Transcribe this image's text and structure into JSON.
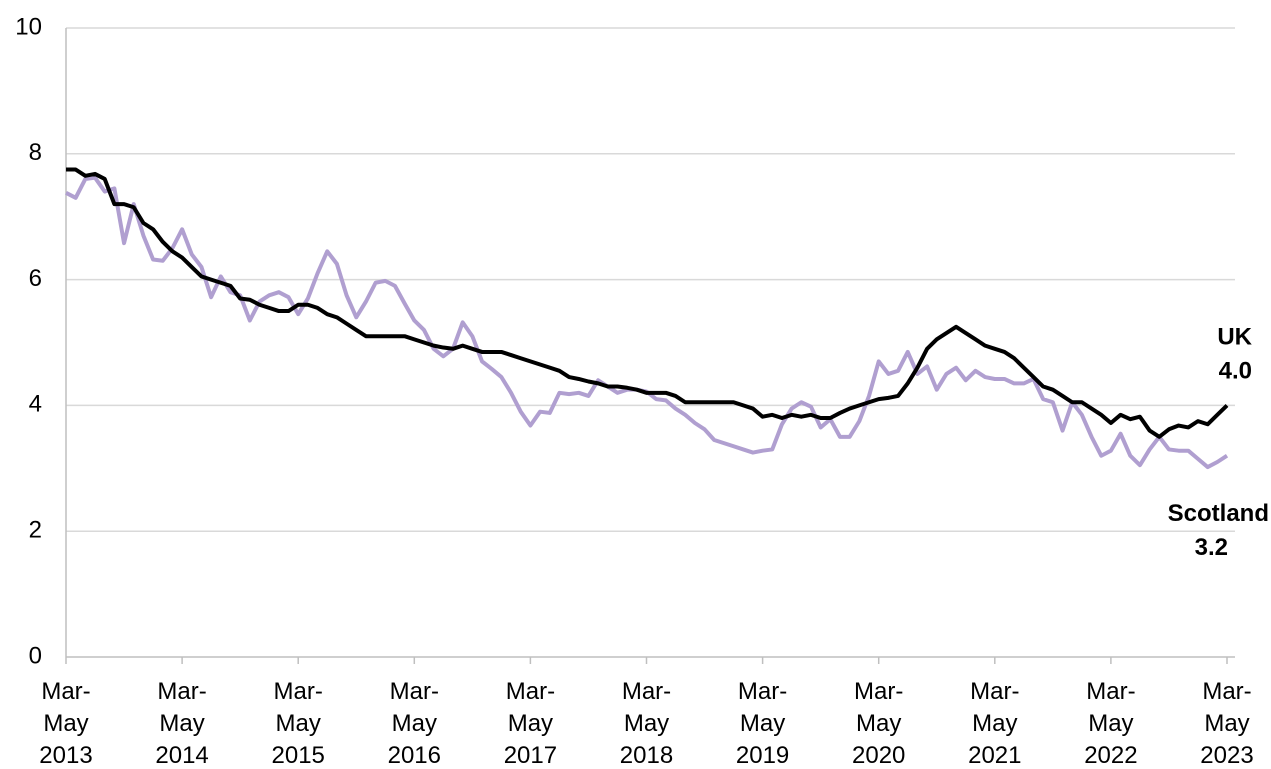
{
  "chart_data": {
    "type": "line",
    "categories": [
      "Mar-May 2013",
      null,
      null,
      null,
      null,
      null,
      null,
      null,
      null,
      null,
      null,
      null,
      "Mar-May 2014",
      null,
      null,
      null,
      null,
      null,
      null,
      null,
      null,
      null,
      null,
      null,
      "Mar-May 2015",
      null,
      null,
      null,
      null,
      null,
      null,
      null,
      null,
      null,
      null,
      null,
      "Mar-May 2016",
      null,
      null,
      null,
      null,
      null,
      null,
      null,
      null,
      null,
      null,
      null,
      "Mar-May 2017",
      null,
      null,
      null,
      null,
      null,
      null,
      null,
      null,
      null,
      null,
      null,
      "Mar-May 2018",
      null,
      null,
      null,
      null,
      null,
      null,
      null,
      null,
      null,
      null,
      null,
      "Mar-May 2019",
      null,
      null,
      null,
      null,
      null,
      null,
      null,
      null,
      null,
      null,
      null,
      "Mar-May 2020",
      null,
      null,
      null,
      null,
      null,
      null,
      null,
      null,
      null,
      null,
      null,
      "Mar-May 2021",
      null,
      null,
      null,
      null,
      null,
      null,
      null,
      null,
      null,
      null,
      null,
      "Mar-May 2022",
      null,
      null,
      null,
      null,
      null,
      null,
      null,
      null,
      null,
      null,
      null,
      "Mar-May 2023"
    ],
    "series": [
      {
        "name": "UK",
        "color": "#000000",
        "values": [
          7.75,
          7.75,
          7.65,
          7.68,
          7.6,
          7.2,
          7.2,
          7.15,
          6.9,
          6.8,
          6.6,
          6.45,
          6.35,
          6.2,
          6.05,
          6.0,
          5.95,
          5.9,
          5.7,
          5.68,
          5.6,
          5.55,
          5.5,
          5.5,
          5.6,
          5.6,
          5.55,
          5.45,
          5.4,
          5.3,
          5.2,
          5.1,
          5.1,
          5.1,
          5.1,
          5.1,
          5.05,
          5.0,
          4.95,
          4.92,
          4.9,
          4.95,
          4.9,
          4.85,
          4.85,
          4.85,
          4.8,
          4.75,
          4.7,
          4.65,
          4.6,
          4.55,
          4.45,
          4.42,
          4.38,
          4.35,
          4.3,
          4.3,
          4.28,
          4.25,
          4.2,
          4.2,
          4.2,
          4.15,
          4.05,
          4.05,
          4.05,
          4.05,
          4.05,
          4.05,
          4.0,
          3.95,
          3.82,
          3.85,
          3.8,
          3.85,
          3.82,
          3.85,
          3.8,
          3.8,
          3.88,
          3.95,
          4.0,
          4.05,
          4.1,
          4.12,
          4.15,
          4.35,
          4.6,
          4.9,
          5.05,
          5.15,
          5.25,
          5.15,
          5.05,
          4.95,
          4.9,
          4.85,
          4.75,
          4.6,
          4.45,
          4.3,
          4.25,
          4.15,
          4.05,
          4.05,
          3.95,
          3.85,
          3.72,
          3.85,
          3.78,
          3.82,
          3.6,
          3.5,
          3.62,
          3.68,
          3.65,
          3.75,
          3.7,
          3.85,
          4.0
        ],
        "value_labels": [
          null,
          null,
          null,
          null,
          null,
          null,
          null,
          null,
          null,
          null,
          null,
          null,
          null,
          null,
          null,
          null,
          null,
          null,
          null,
          null,
          null,
          null,
          null,
          null,
          null,
          null,
          null,
          null,
          null,
          null,
          null,
          null,
          null,
          null,
          null,
          null,
          null,
          null,
          null,
          null,
          null,
          null,
          null,
          null,
          null,
          null,
          null,
          null,
          null,
          null,
          null,
          null,
          null,
          null,
          null,
          null,
          null,
          null,
          null,
          null,
          null,
          null,
          null,
          null,
          null,
          null,
          null,
          null,
          null,
          null,
          null,
          null,
          null,
          null,
          null,
          null,
          null,
          null,
          null,
          null,
          null,
          null,
          null,
          null,
          null,
          null,
          null,
          null,
          null,
          null,
          null,
          null,
          null,
          null,
          null,
          null,
          null,
          null,
          null,
          null,
          null,
          null,
          null,
          null,
          null,
          null,
          null,
          null,
          null,
          null,
          null,
          null,
          null,
          null,
          null,
          null,
          null,
          null,
          null,
          null,
          "4.0"
        ]
      },
      {
        "name": "Scotland",
        "color": "#b09fd0",
        "values": [
          7.38,
          7.3,
          7.6,
          7.62,
          7.4,
          7.45,
          6.58,
          7.2,
          6.7,
          6.32,
          6.3,
          6.5,
          6.8,
          6.4,
          6.2,
          5.72,
          6.05,
          5.8,
          5.75,
          5.35,
          5.65,
          5.75,
          5.8,
          5.72,
          5.45,
          5.7,
          6.1,
          6.45,
          6.25,
          5.75,
          5.4,
          5.65,
          5.95,
          5.98,
          5.9,
          5.62,
          5.35,
          5.2,
          4.9,
          4.78,
          4.9,
          5.32,
          5.1,
          4.7,
          4.58,
          4.45,
          4.2,
          3.9,
          3.68,
          3.9,
          3.88,
          4.2,
          4.18,
          4.2,
          4.15,
          4.4,
          4.3,
          4.2,
          4.25,
          4.25,
          4.22,
          4.1,
          4.08,
          3.95,
          3.85,
          3.72,
          3.62,
          3.45,
          3.4,
          3.35,
          3.3,
          3.25,
          3.28,
          3.3,
          3.7,
          3.95,
          4.05,
          3.98,
          3.65,
          3.78,
          3.5,
          3.5,
          3.75,
          4.15,
          4.7,
          4.5,
          4.55,
          4.85,
          4.5,
          4.62,
          4.25,
          4.5,
          4.6,
          4.4,
          4.55,
          4.45,
          4.42,
          4.42,
          4.35,
          4.35,
          4.42,
          4.1,
          4.05,
          3.6,
          4.05,
          3.85,
          3.5,
          3.2,
          3.28,
          3.55,
          3.2,
          3.05,
          3.3,
          3.5,
          3.3,
          3.28,
          3.28,
          3.15,
          3.02,
          3.1,
          3.2
        ],
        "value_labels": [
          null,
          null,
          null,
          null,
          null,
          null,
          null,
          null,
          null,
          null,
          null,
          null,
          null,
          null,
          null,
          null,
          null,
          null,
          null,
          null,
          null,
          null,
          null,
          null,
          null,
          null,
          null,
          null,
          null,
          null,
          null,
          null,
          null,
          null,
          null,
          null,
          null,
          null,
          null,
          null,
          null,
          null,
          null,
          null,
          null,
          null,
          null,
          null,
          null,
          null,
          null,
          null,
          null,
          null,
          null,
          null,
          null,
          null,
          null,
          null,
          null,
          null,
          null,
          null,
          null,
          null,
          null,
          null,
          null,
          null,
          null,
          null,
          null,
          null,
          null,
          null,
          null,
          null,
          null,
          null,
          null,
          null,
          null,
          null,
          null,
          null,
          null,
          null,
          null,
          null,
          null,
          null,
          null,
          null,
          null,
          null,
          null,
          null,
          null,
          null,
          null,
          null,
          null,
          null,
          null,
          null,
          null,
          null,
          null,
          null,
          null,
          null,
          null,
          null,
          null,
          null,
          null,
          null,
          null,
          null,
          "3.2"
        ]
      }
    ],
    "ylim": [
      0,
      10
    ],
    "yticks": [
      0,
      2,
      4,
      6,
      8,
      10
    ],
    "grid": true
  }
}
